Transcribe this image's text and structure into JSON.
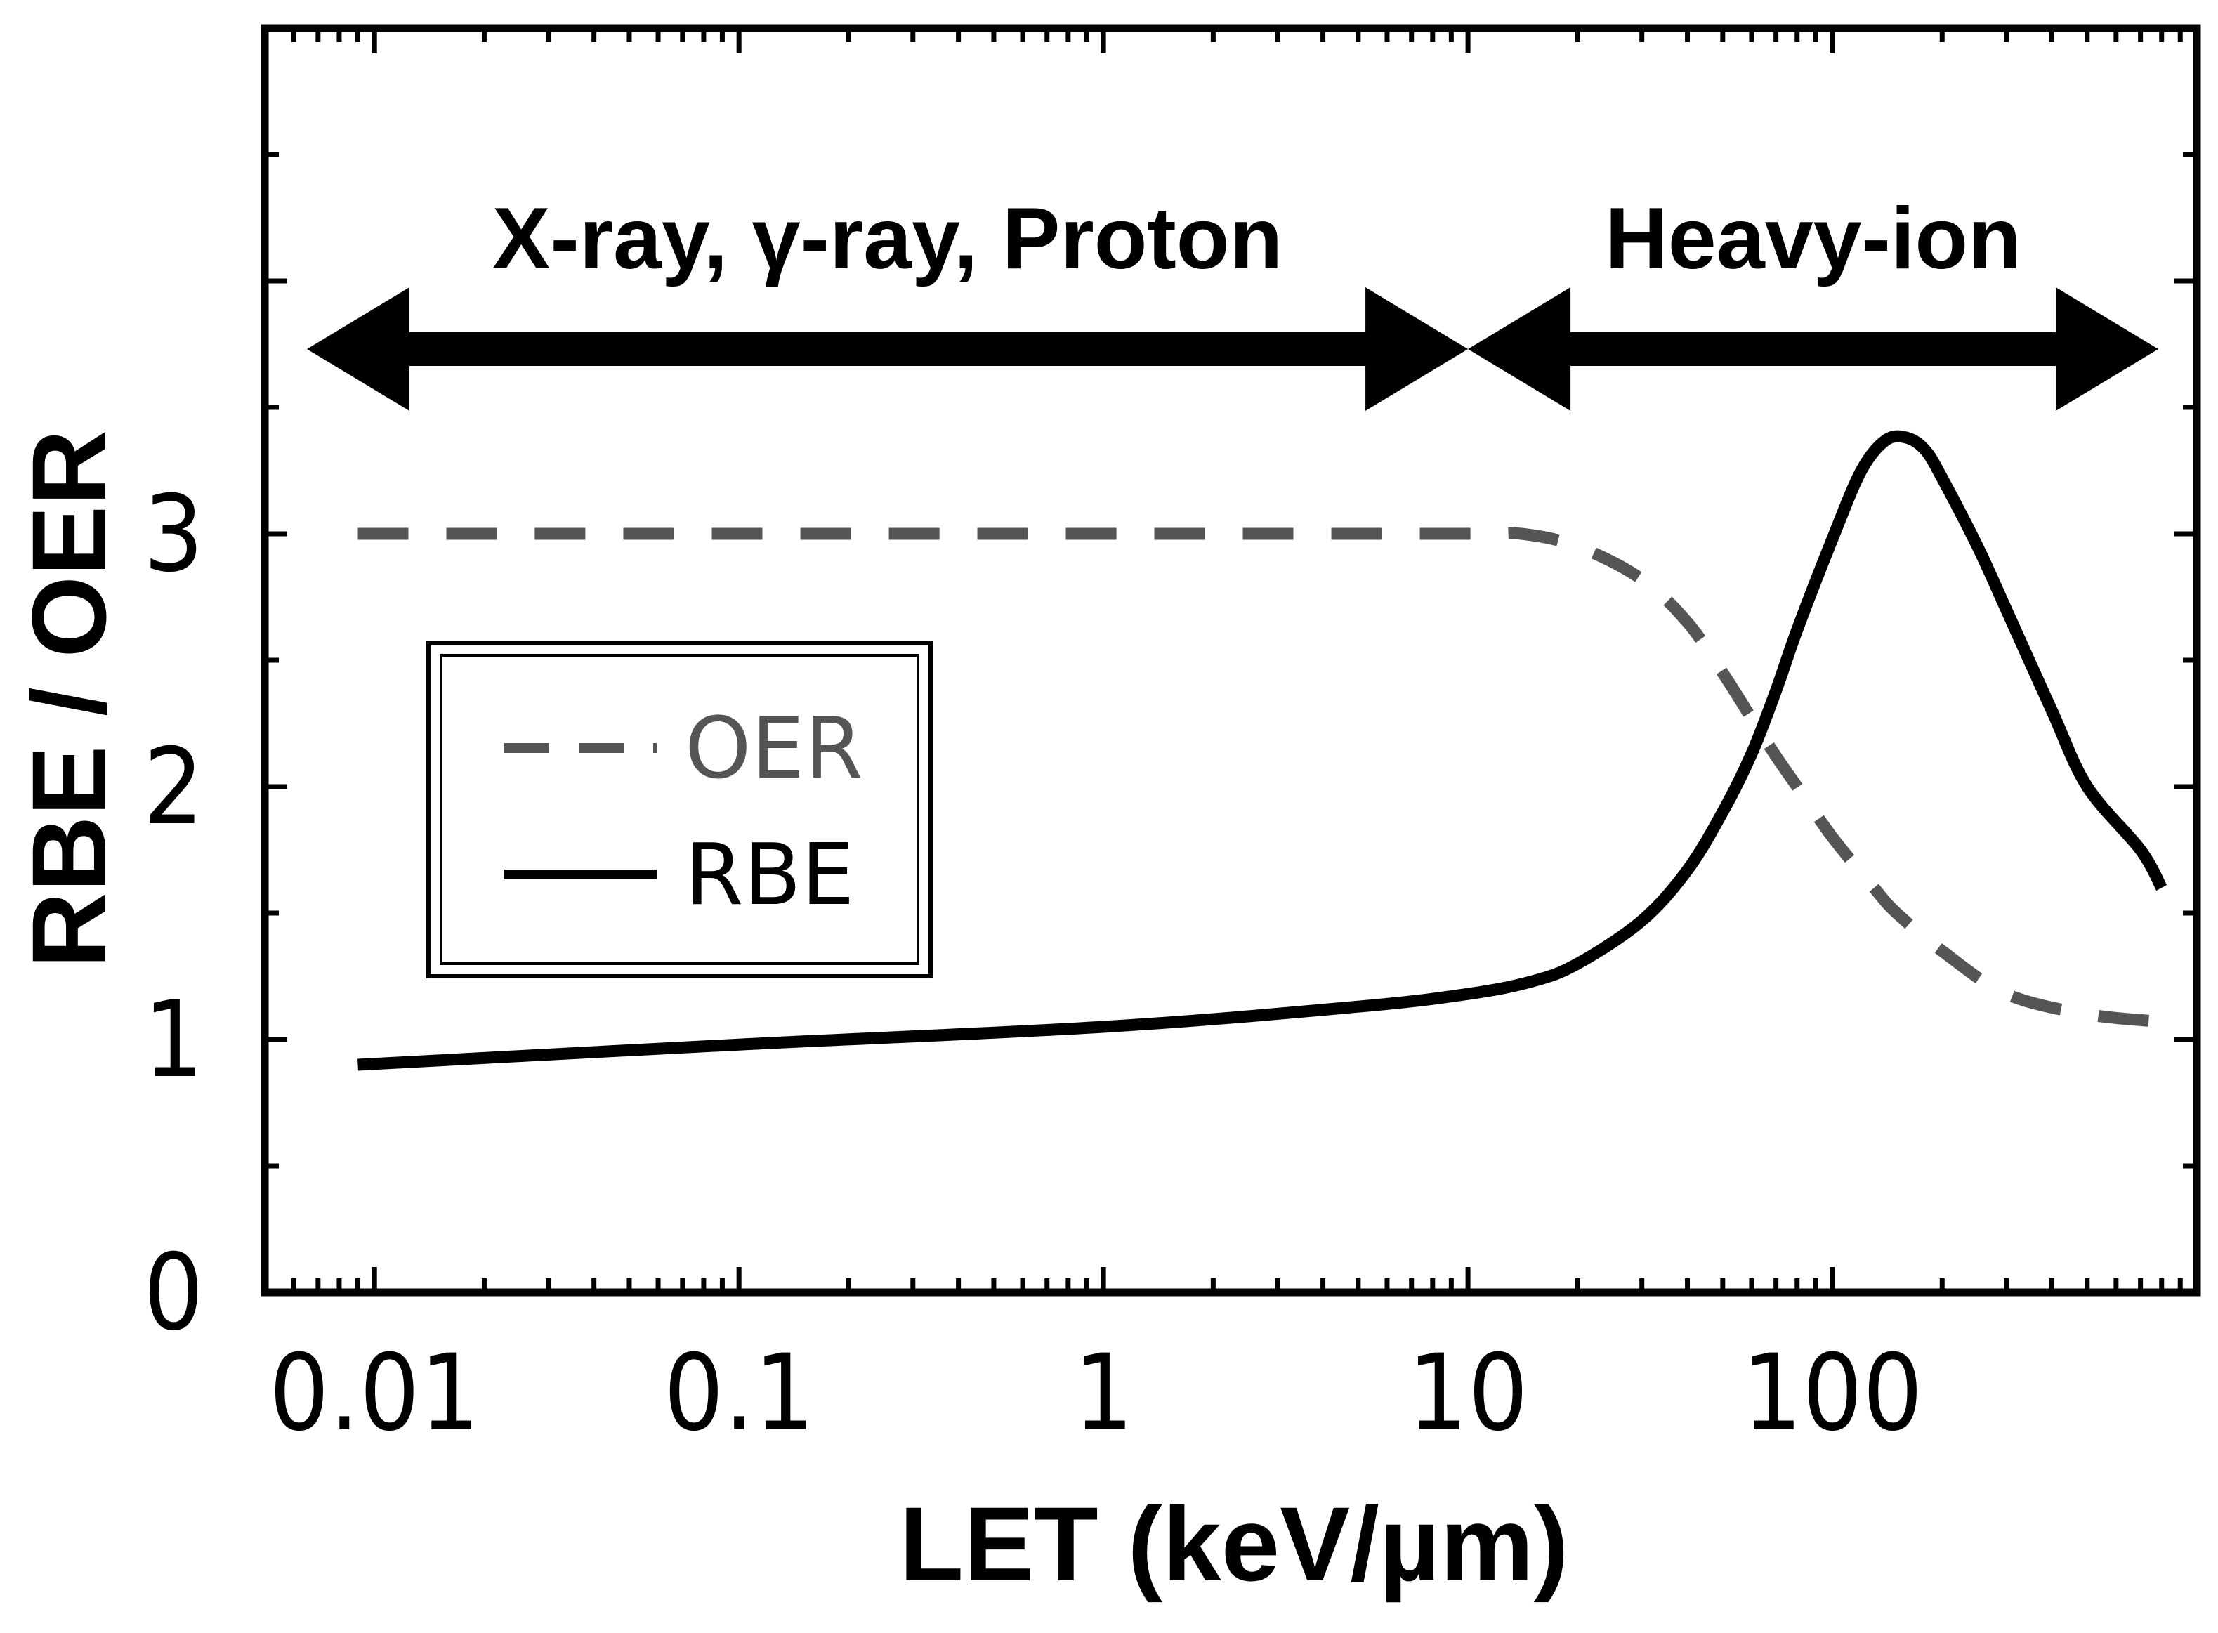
{
  "chart_data": {
    "type": "line",
    "xlabel": "LET (keV/µm)",
    "ylabel": "RBE / OER",
    "xscale": "log",
    "xlim": [
      0.005,
      1000
    ],
    "ylim": [
      0,
      5
    ],
    "x_ticks": [
      0.01,
      0.1,
      1,
      10,
      100
    ],
    "x_tick_labels": [
      "0.01",
      "0.1",
      "1",
      "10",
      "100"
    ],
    "y_ticks": [
      0,
      1,
      2,
      3
    ],
    "y_tick_labels": [
      "0",
      "1",
      "2",
      "3"
    ],
    "grid": false,
    "legend": {
      "placement": "left-middle",
      "boxed": true
    },
    "regions": [
      {
        "label": "X-ray, γ-ray, Proton",
        "x_range": [
          0.005,
          10
        ]
      },
      {
        "label": "Heavy-ion",
        "x_range": [
          10,
          1000
        ]
      }
    ],
    "series": [
      {
        "name": "OER",
        "style": "dashed",
        "color": "#555555",
        "x": [
          0.009,
          1,
          10,
          14,
          20,
          30,
          40,
          50,
          60,
          70,
          80,
          100,
          130,
          150,
          200,
          300,
          500,
          800
        ],
        "y": [
          3.0,
          3.0,
          3.0,
          3.0,
          2.95,
          2.82,
          2.65,
          2.45,
          2.27,
          2.12,
          2.0,
          1.8,
          1.6,
          1.5,
          1.35,
          1.18,
          1.1,
          1.07
        ]
      },
      {
        "name": "RBE",
        "style": "solid",
        "color": "#000000",
        "x": [
          0.009,
          0.1,
          1,
          5,
          10,
          15,
          20,
          30,
          40,
          50,
          60,
          70,
          80,
          100,
          120,
          140,
          160,
          180,
          200,
          250,
          300,
          400,
          500,
          700,
          800
        ],
        "y": [
          0.9,
          0.98,
          1.05,
          1.13,
          1.18,
          1.23,
          1.3,
          1.47,
          1.67,
          1.9,
          2.13,
          2.38,
          2.62,
          2.98,
          3.25,
          3.37,
          3.38,
          3.33,
          3.22,
          2.95,
          2.7,
          2.3,
          2.0,
          1.75,
          1.6
        ]
      }
    ]
  }
}
